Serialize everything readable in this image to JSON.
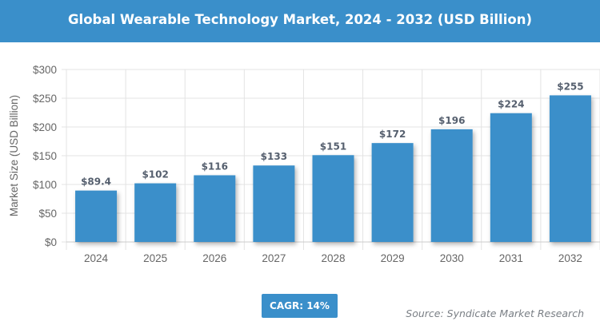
{
  "chart_data": {
    "type": "bar",
    "title": "Global Wearable Technology Market, 2024 - 2032 (USD Billion)",
    "xlabel": "",
    "ylabel": "Market Size (USD Billion)",
    "categories": [
      "2024",
      "2025",
      "2026",
      "2027",
      "2028",
      "2029",
      "2030",
      "2031",
      "2032"
    ],
    "values": [
      89.4,
      102,
      116,
      133,
      151,
      172,
      196,
      224,
      255
    ],
    "data_labels": [
      "$89.4",
      "$102",
      "$116",
      "$133",
      "$151",
      "$172",
      "$196",
      "$224",
      "$255"
    ],
    "ylim": [
      0,
      300
    ],
    "yticks": [
      0,
      50,
      100,
      150,
      200,
      250,
      300
    ],
    "ytick_labels": [
      "$0",
      "$50",
      "$100",
      "$150",
      "$200",
      "$250",
      "$300"
    ],
    "grid": true,
    "bar_color": "#3a8fca"
  },
  "cagr_label": "CAGR: 14%",
  "source": "Source: Syndicate Market Research"
}
